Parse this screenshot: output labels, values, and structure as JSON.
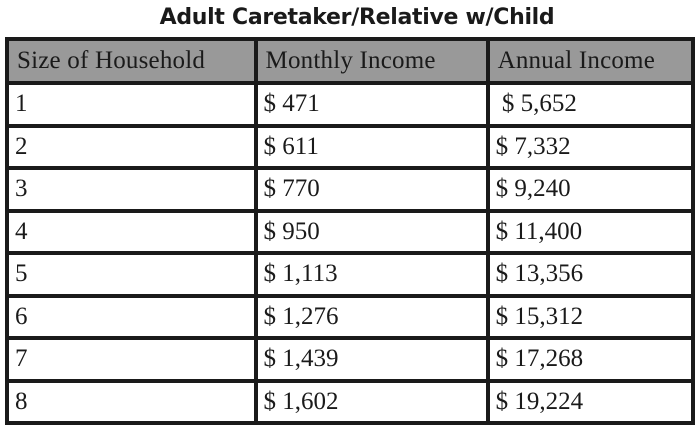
{
  "title": "Adult Caretaker/Relative w/Child",
  "columns": [
    "Size of Household",
    "Monthly Income",
    "Annual Income"
  ],
  "rows": [
    {
      "size": "1",
      "monthly": "$ 471",
      "annual": " $ 5,652"
    },
    {
      "size": "2",
      "monthly": "$ 611",
      "annual": "$ 7,332"
    },
    {
      "size": "3",
      "monthly": "$ 770",
      "annual": "$ 9,240"
    },
    {
      "size": "4",
      "monthly": "$ 950",
      "annual": "$ 11,400"
    },
    {
      "size": "5",
      "monthly": "$ 1,113",
      "annual": "$ 13,356"
    },
    {
      "size": "6",
      "monthly": "$ 1,276",
      "annual": "$ 15,312"
    },
    {
      "size": "7",
      "monthly": "$ 1,439",
      "annual": "$ 17,268"
    },
    {
      "size": "8",
      "monthly": "$ 1,602",
      "annual": "$ 19,224"
    }
  ],
  "colors": {
    "header_background": "#999999",
    "border": "#1a1a1a",
    "text": "#1a1a1a"
  }
}
